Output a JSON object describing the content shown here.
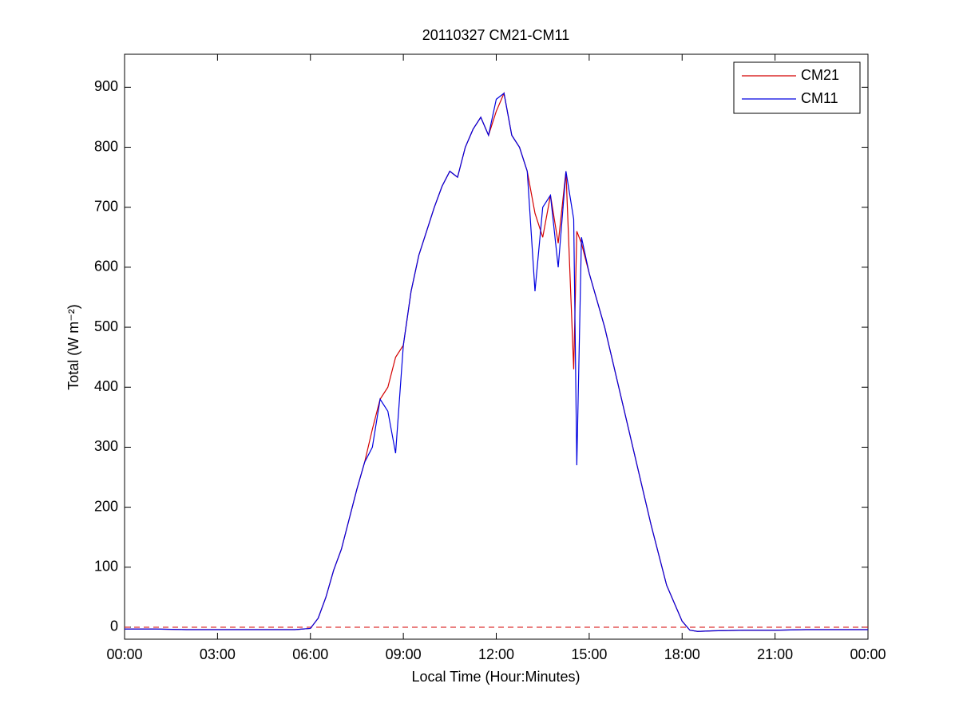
{
  "chart_data": {
    "type": "line",
    "title": "20110327 CM21-CM11",
    "x_label": "Local Time (Hour:Minutes)",
    "y_label": "Total (W m⁻²)",
    "x": [
      0,
      1,
      2,
      3,
      4,
      5,
      5.5,
      6,
      6.25,
      6.5,
      6.75,
      7,
      7.25,
      7.5,
      7.75,
      8,
      8.25,
      8.5,
      8.75,
      9,
      9.25,
      9.5,
      9.75,
      10,
      10.25,
      10.5,
      10.75,
      11,
      11.25,
      11.5,
      11.75,
      12,
      12.25,
      12.5,
      12.75,
      13,
      13.25,
      13.5,
      13.75,
      14,
      14.25,
      14.5,
      14.6,
      14.75,
      15,
      15.5,
      16,
      16.5,
      17,
      17.5,
      18,
      18.25,
      18.5,
      19,
      20,
      21,
      22,
      23,
      24
    ],
    "series": [
      {
        "name": "CM21",
        "color": "#d40000",
        "values": [
          -3,
          -3,
          -4,
          -4,
          -4,
          -4,
          -4,
          -2,
          15,
          50,
          95,
          130,
          180,
          230,
          275,
          330,
          380,
          400,
          450,
          470,
          560,
          620,
          660,
          700,
          735,
          760,
          750,
          800,
          830,
          850,
          820,
          860,
          890,
          820,
          800,
          760,
          690,
          650,
          720,
          640,
          760,
          430,
          660,
          640,
          590,
          500,
          390,
          280,
          170,
          70,
          10,
          -5,
          -7,
          -6,
          -5,
          -5,
          -4,
          -4,
          -4
        ]
      },
      {
        "name": "CM11",
        "color": "#0000e0",
        "values": [
          -3,
          -3,
          -4,
          -4,
          -4,
          -4,
          -4,
          -2,
          15,
          50,
          95,
          130,
          180,
          230,
          275,
          300,
          380,
          360,
          290,
          470,
          560,
          620,
          660,
          700,
          735,
          760,
          750,
          800,
          830,
          850,
          820,
          880,
          890,
          820,
          800,
          760,
          560,
          700,
          720,
          600,
          760,
          680,
          270,
          650,
          590,
          500,
          390,
          280,
          170,
          70,
          10,
          -5,
          -7,
          -6,
          -5,
          -5,
          -4,
          -4,
          -4
        ]
      }
    ],
    "xlim": [
      0,
      24
    ],
    "xticks": [
      {
        "value": 0,
        "label": "00:00"
      },
      {
        "value": 3,
        "label": "03:00"
      },
      {
        "value": 6,
        "label": "06:00"
      },
      {
        "value": 9,
        "label": "09:00"
      },
      {
        "value": 12,
        "label": "12:00"
      },
      {
        "value": 15,
        "label": "15:00"
      },
      {
        "value": 18,
        "label": "18:00"
      },
      {
        "value": 21,
        "label": "21:00"
      },
      {
        "value": 24,
        "label": "00:00"
      }
    ],
    "ylim": [
      -20,
      955
    ],
    "yticks": [
      0,
      100,
      200,
      300,
      400,
      500,
      600,
      700,
      800,
      900
    ],
    "reference_line": {
      "value": 0,
      "color": "#d40000",
      "style": "dashed"
    },
    "grid": false,
    "legend": "upper right"
  }
}
